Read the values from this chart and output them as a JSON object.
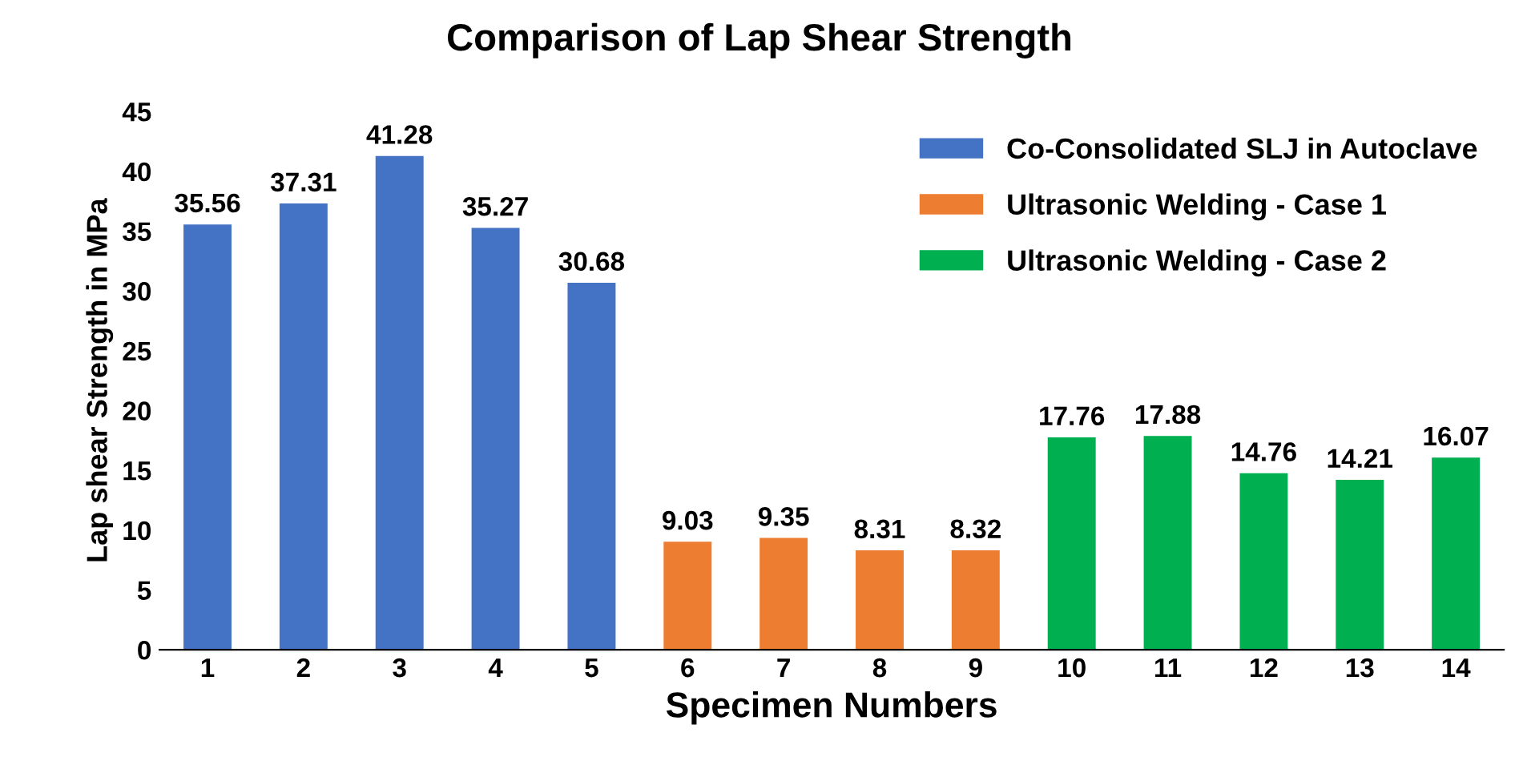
{
  "chart_data": {
    "type": "bar",
    "title": "Comparison of Lap Shear Strength",
    "xlabel": "Specimen Numbers",
    "ylabel": "Lap shear Strength in MPa",
    "categories": [
      "1",
      "2",
      "3",
      "4",
      "5",
      "6",
      "7",
      "8",
      "9",
      "10",
      "11",
      "12",
      "13",
      "14"
    ],
    "series": [
      {
        "name": "Co-Consolidated SLJ in Autoclave",
        "color": "#4472c4",
        "values": [
          35.56,
          37.31,
          41.28,
          35.27,
          30.68,
          null,
          null,
          null,
          null,
          null,
          null,
          null,
          null,
          null
        ]
      },
      {
        "name": "Ultrasonic Welding - Case 1",
        "color": "#ed7d31",
        "values": [
          null,
          null,
          null,
          null,
          null,
          9.03,
          9.35,
          8.31,
          8.32,
          null,
          null,
          null,
          null,
          null
        ]
      },
      {
        "name": "Ultrasonic Welding - Case 2",
        "color": "#00b050",
        "values": [
          null,
          null,
          null,
          null,
          null,
          null,
          null,
          null,
          null,
          17.76,
          17.88,
          14.76,
          14.21,
          16.07
        ]
      }
    ],
    "ylim": [
      0,
      45
    ],
    "yticks": [
      0,
      5,
      10,
      15,
      20,
      25,
      30,
      35,
      40,
      45
    ],
    "grid": false,
    "legend": "top right",
    "data_labels": true
  }
}
